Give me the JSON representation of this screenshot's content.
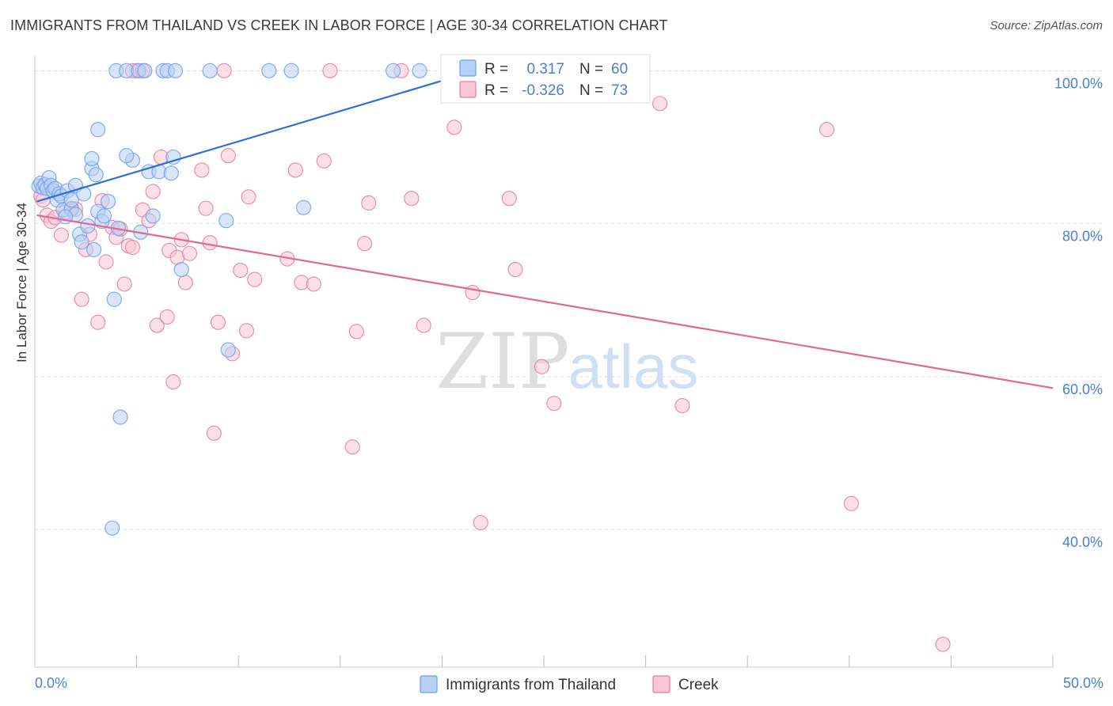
{
  "title": "IMMIGRANTS FROM THAILAND VS CREEK IN LABOR FORCE | AGE 30-34 CORRELATION CHART",
  "source": "Source: ZipAtlas.com",
  "watermark": {
    "zip": "ZIP",
    "atlas": "atlas"
  },
  "colors": {
    "blue": "#6b9fe8",
    "blue_fill": "#b8d0f5",
    "blue_line": "#2f6fd6",
    "pink": "#e87a9f",
    "pink_fill": "#f8c6d6",
    "pink_line": "#e06895",
    "axis_text": "#4a7fd4",
    "grid": "#dddddd"
  },
  "legend": {
    "r_label": "R =",
    "n_label": "N =",
    "rows": [
      {
        "r": "0.317",
        "n": "60"
      },
      {
        "r": "-0.326",
        "n": "73"
      }
    ]
  },
  "chart_data": {
    "type": "scatter",
    "title": "IMMIGRANTS FROM THAILAND VS CREEK IN LABOR FORCE | AGE 30-34 CORRELATION CHART",
    "xlabel": "",
    "ylabel": "In Labor Force | Age 30-34",
    "xlim": [
      0,
      50
    ],
    "ylim": [
      22,
      102
    ],
    "x_tick_labels": [
      "0.0%",
      "50.0%"
    ],
    "y_ticks": [
      40,
      60,
      80,
      100
    ],
    "y_tick_labels": [
      "40.0%",
      "60.0%",
      "80.0%",
      "100.0%"
    ],
    "grid": true,
    "series": [
      {
        "name": "Immigrants from Thailand",
        "r": 0.317,
        "n": 60,
        "trend": {
          "x": [
            0.1,
            20.4
          ],
          "y": [
            82.9,
            99.0
          ]
        },
        "points": [
          [
            0.2,
            84.9
          ],
          [
            0.3,
            85.3
          ],
          [
            0.4,
            84.7
          ],
          [
            0.5,
            85.1
          ],
          [
            0.6,
            84.6
          ],
          [
            0.7,
            86.0
          ],
          [
            0.8,
            85.0
          ],
          [
            0.9,
            84.3
          ],
          [
            1.0,
            84.6
          ],
          [
            1.1,
            83.1
          ],
          [
            1.2,
            83.9
          ],
          [
            1.3,
            83.6
          ],
          [
            1.4,
            81.8
          ],
          [
            1.6,
            84.3
          ],
          [
            1.8,
            81.9
          ],
          [
            1.8,
            83.1
          ],
          [
            2.0,
            85.0
          ],
          [
            2.0,
            81.2
          ],
          [
            2.2,
            78.6
          ],
          [
            2.3,
            77.6
          ],
          [
            2.4,
            83.9
          ],
          [
            2.6,
            79.7
          ],
          [
            2.8,
            87.2
          ],
          [
            2.8,
            88.5
          ],
          [
            2.9,
            76.6
          ],
          [
            3.0,
            86.4
          ],
          [
            3.1,
            92.3
          ],
          [
            3.1,
            81.6
          ],
          [
            3.3,
            80.3
          ],
          [
            3.4,
            81.0
          ],
          [
            3.6,
            82.9
          ],
          [
            3.9,
            70.1
          ],
          [
            3.8,
            40.2
          ],
          [
            4.0,
            100.0
          ],
          [
            4.1,
            79.4
          ],
          [
            4.2,
            54.7
          ],
          [
            4.5,
            100.0
          ],
          [
            4.8,
            88.3
          ],
          [
            5.1,
            100.0
          ],
          [
            5.4,
            100.0
          ],
          [
            5.2,
            78.9
          ],
          [
            5.6,
            86.8
          ],
          [
            5.8,
            81.0
          ],
          [
            6.1,
            86.8
          ],
          [
            6.3,
            100.0
          ],
          [
            6.5,
            100.0
          ],
          [
            6.7,
            86.6
          ],
          [
            6.8,
            88.7
          ],
          [
            6.9,
            100.0
          ],
          [
            7.2,
            74.0
          ],
          [
            8.6,
            100.0
          ],
          [
            9.4,
            80.4
          ],
          [
            9.5,
            63.5
          ],
          [
            11.5,
            100.0
          ],
          [
            12.6,
            100.0
          ],
          [
            13.2,
            82.1
          ],
          [
            17.6,
            100.0
          ],
          [
            18.9,
            100.0
          ],
          [
            4.5,
            88.9
          ],
          [
            1.5,
            80.9
          ]
        ]
      },
      {
        "name": "Creek",
        "r": -0.326,
        "n": 73,
        "trend": {
          "x": [
            0.1,
            50.0
          ],
          "y": [
            81.1,
            58.5
          ]
        },
        "points": [
          [
            0.3,
            83.6
          ],
          [
            0.6,
            81.1
          ],
          [
            0.8,
            80.3
          ],
          [
            1.0,
            80.8
          ],
          [
            1.3,
            78.5
          ],
          [
            1.5,
            81.5
          ],
          [
            1.8,
            82.0
          ],
          [
            2.0,
            81.9
          ],
          [
            2.3,
            70.1
          ],
          [
            2.5,
            76.6
          ],
          [
            2.7,
            78.6
          ],
          [
            3.1,
            67.1
          ],
          [
            3.3,
            83.0
          ],
          [
            3.5,
            75.0
          ],
          [
            3.8,
            79.5
          ],
          [
            4.0,
            78.2
          ],
          [
            4.2,
            79.3
          ],
          [
            4.4,
            72.1
          ],
          [
            4.6,
            77.1
          ],
          [
            4.8,
            76.9
          ],
          [
            5.0,
            100.0
          ],
          [
            5.3,
            81.8
          ],
          [
            5.6,
            80.4
          ],
          [
            5.8,
            84.2
          ],
          [
            6.0,
            66.7
          ],
          [
            6.2,
            88.7
          ],
          [
            6.5,
            67.8
          ],
          [
            6.6,
            76.5
          ],
          [
            6.8,
            59.3
          ],
          [
            7.0,
            75.6
          ],
          [
            7.2,
            77.9
          ],
          [
            7.4,
            72.3
          ],
          [
            7.6,
            76.1
          ],
          [
            8.2,
            87.0
          ],
          [
            8.4,
            82.0
          ],
          [
            8.6,
            77.5
          ],
          [
            8.8,
            52.6
          ],
          [
            9.0,
            67.1
          ],
          [
            9.3,
            100.0
          ],
          [
            9.5,
            88.9
          ],
          [
            9.7,
            63.0
          ],
          [
            10.1,
            73.9
          ],
          [
            10.4,
            66.0
          ],
          [
            10.5,
            83.5
          ],
          [
            10.8,
            72.7
          ],
          [
            12.4,
            75.4
          ],
          [
            12.8,
            87.0
          ],
          [
            13.1,
            72.3
          ],
          [
            13.7,
            72.1
          ],
          [
            14.2,
            88.2
          ],
          [
            14.5,
            100.0
          ],
          [
            15.6,
            50.8
          ],
          [
            15.8,
            65.9
          ],
          [
            16.2,
            77.4
          ],
          [
            16.4,
            82.7
          ],
          [
            18.0,
            100.0
          ],
          [
            18.5,
            83.3
          ],
          [
            19.1,
            66.7
          ],
          [
            20.6,
            92.6
          ],
          [
            21.5,
            71.0
          ],
          [
            21.9,
            40.9
          ],
          [
            23.3,
            83.3
          ],
          [
            23.6,
            74.0
          ],
          [
            24.9,
            61.3
          ],
          [
            25.5,
            56.5
          ],
          [
            30.7,
            95.7
          ],
          [
            31.8,
            56.2
          ],
          [
            38.9,
            92.3
          ],
          [
            40.1,
            43.4
          ],
          [
            44.6,
            25.0
          ],
          [
            4.8,
            100.0
          ],
          [
            5.3,
            100.0
          ],
          [
            0.4,
            83.1
          ]
        ]
      }
    ]
  }
}
